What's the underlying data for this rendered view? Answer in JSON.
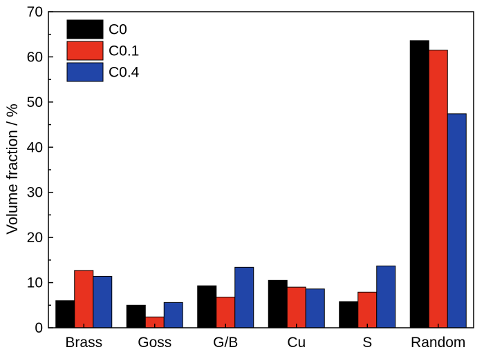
{
  "chart_data": {
    "type": "bar",
    "title": "",
    "xlabel": "",
    "ylabel": "Volume fraction / %",
    "ylim": [
      0,
      70
    ],
    "yticks": [
      "0",
      "10",
      "20",
      "30",
      "40",
      "50",
      "60",
      "70"
    ],
    "grid": false,
    "legend_position": "top-left",
    "categories": [
      "Brass",
      "Goss",
      "G/B",
      "Cu",
      "S",
      "Random"
    ],
    "series": [
      {
        "name": "C0",
        "color": "#000000",
        "values": [
          6.0,
          5.0,
          9.3,
          10.5,
          5.8,
          63.6
        ]
      },
      {
        "name": "C0.1",
        "color": "#e8321f",
        "values": [
          12.7,
          2.4,
          6.8,
          9.0,
          7.9,
          61.5
        ]
      },
      {
        "name": "C0.4",
        "color": "#2145a8",
        "values": [
          11.4,
          5.6,
          13.4,
          8.6,
          13.7,
          47.4
        ]
      }
    ]
  }
}
